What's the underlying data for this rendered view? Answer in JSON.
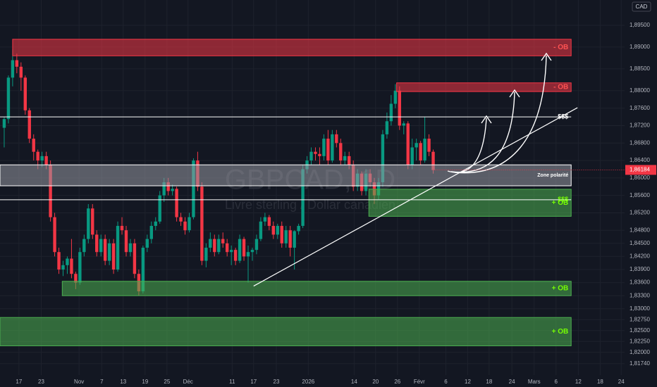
{
  "chart_data": {
    "type": "candlestick",
    "currency": "CAD",
    "watermark": {
      "symbol": "GBPCAD, 1D",
      "description": "Livre sterling / Dollar canadien"
    },
    "up_color": "#089981",
    "down_color": "#f23645",
    "xlim": [
      -1,
      147.5
    ],
    "ylim": [
      1.8148,
      1.9008
    ],
    "grid": true,
    "xticks": [
      {
        "value": 3.5,
        "label": "17"
      },
      {
        "value": 8.8,
        "label": "23"
      },
      {
        "value": 17.8,
        "label": "Nov"
      },
      {
        "value": 23.2,
        "label": "7"
      },
      {
        "value": 28.3,
        "label": "13"
      },
      {
        "value": 33.5,
        "label": "19"
      },
      {
        "value": 38.7,
        "label": "25"
      },
      {
        "value": 43.7,
        "label": "Déc"
      },
      {
        "value": 54.2,
        "label": "11"
      },
      {
        "value": 59.3,
        "label": "17"
      },
      {
        "value": 64.7,
        "label": "23"
      },
      {
        "value": 72.3,
        "label": "2026"
      },
      {
        "value": 83.2,
        "label": "14"
      },
      {
        "value": 88.3,
        "label": "20"
      },
      {
        "value": 93.5,
        "label": "26"
      },
      {
        "value": 98.7,
        "label": "Févr"
      },
      {
        "value": 105,
        "label": "6"
      },
      {
        "value": 110.2,
        "label": "12"
      },
      {
        "value": 115.3,
        "label": "18"
      },
      {
        "value": 120.7,
        "label": "24"
      },
      {
        "value": 126,
        "label": "Mars"
      },
      {
        "value": 131.2,
        "label": "6"
      },
      {
        "value": 136.5,
        "label": "12"
      },
      {
        "value": 141.7,
        "label": "18"
      },
      {
        "value": 146.7,
        "label": "24"
      }
    ],
    "yticks": [
      {
        "value": 1.895,
        "label": "1,89500"
      },
      {
        "value": 1.89,
        "label": "1,89000"
      },
      {
        "value": 1.885,
        "label": "1,88500"
      },
      {
        "value": 1.88,
        "label": "1,88000"
      },
      {
        "value": 1.876,
        "label": "1,87600"
      },
      {
        "value": 1.872,
        "label": "1,87200"
      },
      {
        "value": 1.868,
        "label": "1,86800"
      },
      {
        "value": 1.864,
        "label": "1,86400"
      },
      {
        "value": 1.86,
        "label": "1,86000"
      },
      {
        "value": 1.856,
        "label": "1,85600"
      },
      {
        "value": 1.852,
        "label": "1,85200"
      },
      {
        "value": 1.848,
        "label": "1,84800"
      },
      {
        "value": 1.845,
        "label": "1,84500"
      },
      {
        "value": 1.842,
        "label": "1,84200"
      },
      {
        "value": 1.839,
        "label": "1,83900"
      },
      {
        "value": 1.836,
        "label": "1,83600"
      },
      {
        "value": 1.833,
        "label": "1,83300"
      },
      {
        "value": 1.83,
        "label": "1,83000"
      },
      {
        "value": 1.8275,
        "label": "1,82750"
      },
      {
        "value": 1.825,
        "label": "1,82500"
      },
      {
        "value": 1.8225,
        "label": "1,82250"
      },
      {
        "value": 1.82,
        "label": "1,82000"
      },
      {
        "value": 1.8174,
        "label": "1,81740"
      }
    ],
    "current": {
      "value": 1.86184,
      "label": "1,86184",
      "color": "#f23645"
    },
    "ohlc": [
      [
        1.8715,
        1.874,
        1.867,
        1.8735
      ],
      [
        1.8735,
        1.8835,
        1.8725,
        1.883
      ],
      [
        1.883,
        1.8895,
        1.881,
        1.887
      ],
      [
        1.887,
        1.8885,
        1.884,
        1.8855
      ],
      [
        1.8855,
        1.8865,
        1.88,
        1.883
      ],
      [
        1.883,
        1.8835,
        1.8745,
        1.8755
      ],
      [
        1.8755,
        1.876,
        1.868,
        1.869
      ],
      [
        1.869,
        1.87,
        1.864,
        1.866
      ],
      [
        1.866,
        1.8665,
        1.862,
        1.864
      ],
      [
        1.864,
        1.866,
        1.8625,
        1.865
      ],
      [
        1.865,
        1.866,
        1.862,
        1.863
      ],
      [
        1.863,
        1.864,
        1.85,
        1.851
      ],
      [
        1.851,
        1.852,
        1.842,
        1.843
      ],
      [
        1.843,
        1.844,
        1.838,
        1.839
      ],
      [
        1.839,
        1.841,
        1.8375,
        1.84
      ],
      [
        1.84,
        1.842,
        1.838,
        1.8415
      ],
      [
        1.8415,
        1.846,
        1.837,
        1.838
      ],
      [
        1.838,
        1.8385,
        1.8345,
        1.836
      ],
      [
        1.836,
        1.844,
        1.8355,
        1.843
      ],
      [
        1.843,
        1.847,
        1.842,
        1.846
      ],
      [
        1.846,
        1.854,
        1.845,
        1.853
      ],
      [
        1.853,
        1.854,
        1.846,
        1.847
      ],
      [
        1.847,
        1.848,
        1.842,
        1.843
      ],
      [
        1.843,
        1.847,
        1.842,
        1.846
      ],
      [
        1.846,
        1.847,
        1.84,
        1.841
      ],
      [
        1.841,
        1.846,
        1.84,
        1.845
      ],
      [
        1.845,
        1.846,
        1.838,
        1.839
      ],
      [
        1.839,
        1.85,
        1.8385,
        1.849
      ],
      [
        1.849,
        1.851,
        1.847,
        1.848
      ],
      [
        1.848,
        1.849,
        1.842,
        1.843
      ],
      [
        1.843,
        1.846,
        1.842,
        1.845
      ],
      [
        1.845,
        1.846,
        1.837,
        1.838
      ],
      [
        1.838,
        1.839,
        1.833,
        1.834
      ],
      [
        1.834,
        1.8445,
        1.8335,
        1.844
      ],
      [
        1.844,
        1.847,
        1.843,
        1.846
      ],
      [
        1.846,
        1.85,
        1.845,
        1.849
      ],
      [
        1.849,
        1.851,
        1.848,
        1.85
      ],
      [
        1.85,
        1.857,
        1.8495,
        1.856
      ],
      [
        1.856,
        1.86,
        1.8545,
        1.859
      ],
      [
        1.859,
        1.86,
        1.856,
        1.857
      ],
      [
        1.857,
        1.8585,
        1.856,
        1.8575
      ],
      [
        1.8575,
        1.858,
        1.85,
        1.851
      ],
      [
        1.851,
        1.852,
        1.849,
        1.85
      ],
      [
        1.85,
        1.851,
        1.847,
        1.848
      ],
      [
        1.848,
        1.852,
        1.8475,
        1.851
      ],
      [
        1.851,
        1.8645,
        1.8505,
        1.864
      ],
      [
        1.864,
        1.866,
        1.857,
        1.858
      ],
      [
        1.858,
        1.859,
        1.84,
        1.841
      ],
      [
        1.841,
        1.845,
        1.8395,
        1.844
      ],
      [
        1.844,
        1.8475,
        1.843,
        1.846
      ],
      [
        1.846,
        1.847,
        1.842,
        1.843
      ],
      [
        1.843,
        1.847,
        1.8425,
        1.846
      ],
      [
        1.846,
        1.8475,
        1.844,
        1.845
      ],
      [
        1.845,
        1.846,
        1.842,
        1.843
      ],
      [
        1.843,
        1.8445,
        1.84,
        1.8435
      ],
      [
        1.8435,
        1.844,
        1.84,
        1.841
      ],
      [
        1.841,
        1.847,
        1.8405,
        1.846
      ],
      [
        1.846,
        1.8465,
        1.841,
        1.842
      ],
      [
        1.842,
        1.8445,
        1.836,
        1.843
      ],
      [
        1.843,
        1.844,
        1.841,
        1.8435
      ],
      [
        1.8435,
        1.847,
        1.8425,
        1.846
      ],
      [
        1.846,
        1.851,
        1.8455,
        1.85
      ],
      [
        1.85,
        1.852,
        1.849,
        1.851
      ],
      [
        1.851,
        1.8515,
        1.848,
        1.849
      ],
      [
        1.849,
        1.85,
        1.846,
        1.847
      ],
      [
        1.847,
        1.8495,
        1.846,
        1.849
      ],
      [
        1.849,
        1.85,
        1.844,
        1.845
      ],
      [
        1.845,
        1.849,
        1.844,
        1.848
      ],
      [
        1.848,
        1.849,
        1.842,
        1.844
      ],
      [
        1.844,
        1.848,
        1.839,
        1.8478
      ],
      [
        1.8478,
        1.8495,
        1.847,
        1.849
      ],
      [
        1.849,
        1.863,
        1.8485,
        1.862
      ],
      [
        1.862,
        1.865,
        1.861,
        1.864
      ],
      [
        1.864,
        1.867,
        1.863,
        1.866
      ],
      [
        1.866,
        1.867,
        1.864,
        1.8655
      ],
      [
        1.8655,
        1.867,
        1.863,
        1.865
      ],
      [
        1.865,
        1.87,
        1.864,
        1.869
      ],
      [
        1.869,
        1.871,
        1.863,
        1.864
      ],
      [
        1.864,
        1.871,
        1.8635,
        1.87
      ],
      [
        1.87,
        1.871,
        1.867,
        1.868
      ],
      [
        1.868,
        1.869,
        1.863,
        1.864
      ],
      [
        1.864,
        1.866,
        1.863,
        1.865
      ],
      [
        1.865,
        1.866,
        1.862,
        1.863
      ],
      [
        1.863,
        1.864,
        1.857,
        1.858
      ],
      [
        1.858,
        1.862,
        1.857,
        1.861
      ],
      [
        1.861,
        1.8615,
        1.856,
        1.857
      ],
      [
        1.857,
        1.862,
        1.856,
        1.861
      ],
      [
        1.861,
        1.862,
        1.858,
        1.859
      ],
      [
        1.859,
        1.86,
        1.854,
        1.856
      ],
      [
        1.856,
        1.86,
        1.855,
        1.859
      ],
      [
        1.859,
        1.871,
        1.858,
        1.87
      ],
      [
        1.87,
        1.875,
        1.869,
        1.873
      ],
      [
        1.873,
        1.879,
        1.872,
        1.877
      ],
      [
        1.877,
        1.8815,
        1.876,
        1.88
      ],
      [
        1.88,
        1.881,
        1.871,
        1.872
      ],
      [
        1.872,
        1.873,
        1.87,
        1.8725
      ],
      [
        1.8725,
        1.873,
        1.862,
        1.863
      ],
      [
        1.863,
        1.869,
        1.862,
        1.867
      ],
      [
        1.867,
        1.869,
        1.864,
        1.868
      ],
      [
        1.868,
        1.8685,
        1.863,
        1.864
      ],
      [
        1.864,
        1.874,
        1.8635,
        1.869
      ],
      [
        1.869,
        1.87,
        1.865,
        1.866
      ],
      [
        1.866,
        1.8665,
        1.861,
        1.8618
      ]
    ],
    "zones": [
      {
        "label": "- OB",
        "top": 1.8918,
        "bottom": 1.888,
        "start": 2,
        "end": 134.8,
        "color": "#f23645",
        "label_color": "#ff5252"
      },
      {
        "label": "- OB",
        "top": 1.8818,
        "bottom": 1.8798,
        "start": 93.3,
        "end": 134.8,
        "color": "#f23645",
        "label_color": "#ff5252"
      },
      {
        "label": "Zone polarité",
        "top": 1.863,
        "bottom": 1.8582,
        "start": -1,
        "end": 134.8,
        "color": "#9598a1",
        "label_color": "#ffffff"
      },
      {
        "label": "+ OB",
        "top": 1.8574,
        "bottom": 1.8512,
        "start": 86.7,
        "end": 134.8,
        "color": "#4caf50",
        "label_color": "#76ff03"
      },
      {
        "label": "+ OB",
        "top": 1.8363,
        "bottom": 1.833,
        "start": 13.8,
        "end": 134.8,
        "color": "#4caf50",
        "label_color": "#76ff03"
      },
      {
        "label": "+ OB",
        "top": 1.828,
        "bottom": 1.8215,
        "start": -1,
        "end": 134.8,
        "color": "#4caf50",
        "label_color": "#76ff03"
      }
    ],
    "levels": [
      {
        "label": "$$$",
        "value": 1.874,
        "label_color": "#ffffff"
      },
      {
        "label": "$$$",
        "value": 1.855,
        "label_color": "#76ff03"
      }
    ],
    "trendline": {
      "x": [
        59.3,
        136.3
      ],
      "y": [
        1.8352,
        1.8761
      ]
    }
  }
}
